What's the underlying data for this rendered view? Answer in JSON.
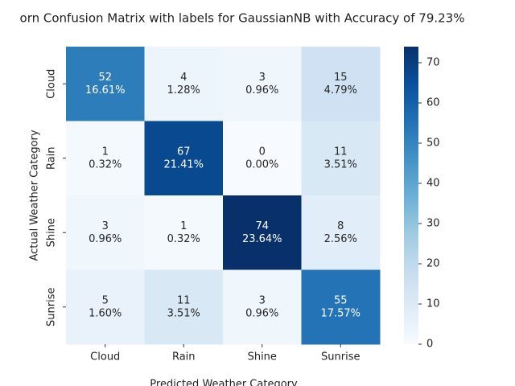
{
  "chart_data": {
    "type": "heatmap",
    "title": "orn Confusion Matrix with labels for GaussianNB with Accuracy of 79.23%",
    "xlabel": "Predicted Weather Category",
    "ylabel": "Actual Weather Category",
    "x_categories": [
      "Cloud",
      "Rain",
      "Shine",
      "Sunrise"
    ],
    "y_categories": [
      "Cloud",
      "Rain",
      "Shine",
      "Sunrise"
    ],
    "values": [
      [
        52,
        4,
        3,
        15
      ],
      [
        1,
        67,
        0,
        11
      ],
      [
        3,
        1,
        74,
        8
      ],
      [
        5,
        11,
        3,
        55
      ]
    ],
    "percent_labels": [
      [
        "16.61%",
        "1.28%",
        "0.96%",
        "4.79%"
      ],
      [
        "0.32%",
        "21.41%",
        "0.00%",
        "3.51%"
      ],
      [
        "0.96%",
        "0.32%",
        "23.64%",
        "2.56%"
      ],
      [
        "1.60%",
        "3.51%",
        "0.96%",
        "17.57%"
      ]
    ],
    "colormap": [
      "#f7fbff",
      "#deebf7",
      "#c6dbef",
      "#9ecae1",
      "#6baed6",
      "#4292c6",
      "#2171b5",
      "#08519c",
      "#08306b"
    ],
    "clim": [
      0,
      74
    ],
    "cticks": [
      0,
      10,
      20,
      30,
      40,
      50,
      60,
      70
    ]
  }
}
